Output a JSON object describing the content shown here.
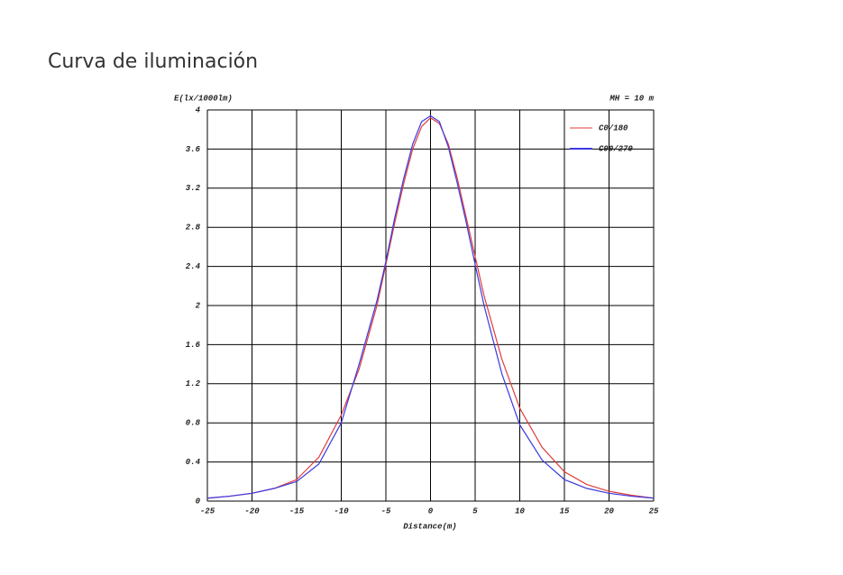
{
  "header": {
    "title": "Curva de iluminación"
  },
  "chart_data": {
    "type": "line",
    "y_label": "E(lx/1000lm)",
    "x_label": "Distance(m)",
    "annotation": "MH = 10 m",
    "x": [
      -25,
      -22.5,
      -20,
      -17.5,
      -15,
      -12.5,
      -10,
      -8,
      -6,
      -5,
      -4,
      -3,
      -2,
      -1,
      0,
      1,
      2,
      3,
      4,
      5,
      6,
      8,
      10,
      12.5,
      15,
      17.5,
      20,
      22.5,
      25
    ],
    "series": [
      {
        "name": "C0/180",
        "color": "#e03c3c",
        "values": [
          0.03,
          0.05,
          0.08,
          0.13,
          0.22,
          0.45,
          0.88,
          1.35,
          2.0,
          2.42,
          2.85,
          3.25,
          3.6,
          3.83,
          3.92,
          3.86,
          3.65,
          3.3,
          2.9,
          2.5,
          2.1,
          1.45,
          0.95,
          0.55,
          0.3,
          0.17,
          0.1,
          0.06,
          0.03
        ]
      },
      {
        "name": "C90/270",
        "color": "#3a3ae0",
        "values": [
          0.03,
          0.05,
          0.08,
          0.13,
          0.2,
          0.38,
          0.8,
          1.4,
          2.05,
          2.45,
          2.9,
          3.3,
          3.65,
          3.88,
          3.94,
          3.88,
          3.62,
          3.25,
          2.85,
          2.42,
          2.0,
          1.3,
          0.78,
          0.42,
          0.22,
          0.13,
          0.08,
          0.05,
          0.03
        ]
      }
    ],
    "xlim": [
      -25,
      25
    ],
    "xticks": [
      -25,
      -20,
      -15,
      -10,
      -5,
      0,
      5,
      10,
      15,
      20,
      25
    ],
    "ylim": [
      0,
      4
    ],
    "yticks": [
      0,
      0.4,
      0.8,
      1.2,
      1.6,
      2,
      2.4,
      2.8,
      3.2,
      3.6,
      4
    ],
    "grid": true,
    "legend": "upper right"
  }
}
